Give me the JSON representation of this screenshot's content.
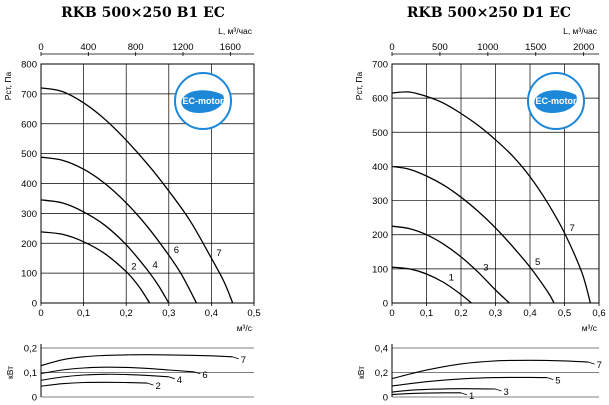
{
  "chart_data": [
    {
      "type": "line",
      "title": "RKB 500×250 B1 EC",
      "badge": "EC-motor",
      "badge_color": "#1e88d8",
      "x_bottom_label": "м³/с",
      "x_bottom_ticks": [
        "0",
        "0,1",
        "0,2",
        "0,3",
        "0,4",
        "0,5"
      ],
      "x_top_label": "L, м³/час",
      "x_top_ticks": [
        "0",
        "400",
        "800",
        "1200",
        "1600"
      ],
      "y_label": "Pст, Па",
      "y_ticks": [
        "0",
        "100",
        "200",
        "300",
        "400",
        "500",
        "600",
        "700",
        "800"
      ],
      "xlim": [
        0,
        0.5
      ],
      "ylim": [
        0,
        800
      ],
      "grid": true,
      "series": [
        {
          "name": "2",
          "x": [
            0,
            0.05,
            0.1,
            0.15,
            0.2,
            0.23,
            0.255
          ],
          "y": [
            238,
            230,
            205,
            165,
            105,
            55,
            0
          ]
        },
        {
          "name": "4",
          "x": [
            0,
            0.05,
            0.1,
            0.15,
            0.2,
            0.25,
            0.275,
            0.3
          ],
          "y": [
            345,
            335,
            305,
            260,
            195,
            110,
            60,
            0
          ]
        },
        {
          "name": "6",
          "x": [
            0,
            0.05,
            0.1,
            0.15,
            0.2,
            0.25,
            0.3,
            0.33,
            0.365
          ],
          "y": [
            488,
            478,
            448,
            400,
            335,
            255,
            160,
            95,
            0
          ]
        },
        {
          "name": "7",
          "x": [
            0,
            0.05,
            0.1,
            0.15,
            0.2,
            0.25,
            0.3,
            0.35,
            0.4,
            0.43,
            0.45
          ],
          "y": [
            720,
            708,
            670,
            615,
            545,
            465,
            375,
            275,
            150,
            70,
            0
          ]
        }
      ],
      "power": {
        "y_label": "кВт",
        "y_ticks": [
          "0",
          "0,1",
          "0,2"
        ],
        "ylim": [
          0,
          0.25
        ],
        "series": [
          {
            "name": "2",
            "x": [
              0,
              0.05,
              0.1,
              0.15,
              0.2,
              0.25
            ],
            "y": [
              0.055,
              0.068,
              0.074,
              0.075,
              0.074,
              0.071
            ]
          },
          {
            "name": "4",
            "x": [
              0,
              0.05,
              0.1,
              0.15,
              0.2,
              0.25,
              0.3
            ],
            "y": [
              0.085,
              0.102,
              0.112,
              0.116,
              0.115,
              0.11,
              0.103
            ]
          },
          {
            "name": "6",
            "x": [
              0,
              0.05,
              0.1,
              0.15,
              0.2,
              0.25,
              0.3,
              0.36
            ],
            "y": [
              0.12,
              0.138,
              0.148,
              0.152,
              0.151,
              0.146,
              0.138,
              0.128
            ]
          },
          {
            "name": "7",
            "x": [
              0,
              0.05,
              0.1,
              0.15,
              0.2,
              0.25,
              0.3,
              0.35,
              0.4,
              0.45
            ],
            "y": [
              0.16,
              0.19,
              0.205,
              0.212,
              0.215,
              0.216,
              0.215,
              0.213,
              0.21,
              0.205
            ]
          }
        ]
      }
    },
    {
      "type": "line",
      "title": "RKB 500×250 D1 EC",
      "badge": "EC-motor",
      "badge_color": "#1e88d8",
      "x_bottom_label": "м³/с",
      "x_bottom_ticks": [
        "0",
        "0,1",
        "0,2",
        "0,3",
        "0,4",
        "0,5",
        "0,6"
      ],
      "x_top_label": "L, м³/час",
      "x_top_ticks": [
        "0",
        "500",
        "1000",
        "1500",
        "2000"
      ],
      "y_label": "Pст, Па",
      "y_ticks": [
        "0",
        "100",
        "200",
        "300",
        "400",
        "500",
        "600",
        "700"
      ],
      "xlim": [
        0,
        0.6
      ],
      "ylim": [
        0,
        700
      ],
      "grid": true,
      "series": [
        {
          "name": "1",
          "x": [
            0,
            0.05,
            0.1,
            0.15,
            0.2,
            0.23
          ],
          "y": [
            105,
            100,
            85,
            60,
            25,
            0
          ]
        },
        {
          "name": "3",
          "x": [
            0,
            0.05,
            0.1,
            0.15,
            0.2,
            0.25,
            0.3,
            0.34
          ],
          "y": [
            225,
            218,
            200,
            172,
            135,
            90,
            38,
            0
          ]
        },
        {
          "name": "5",
          "x": [
            0,
            0.05,
            0.1,
            0.15,
            0.2,
            0.25,
            0.3,
            0.35,
            0.4,
            0.45,
            0.47
          ],
          "y": [
            400,
            392,
            372,
            345,
            310,
            268,
            220,
            165,
            105,
            35,
            0
          ]
        },
        {
          "name": "7",
          "x": [
            0,
            0.05,
            0.1,
            0.15,
            0.2,
            0.25,
            0.3,
            0.35,
            0.4,
            0.45,
            0.5,
            0.55,
            0.575
          ],
          "y": [
            615,
            618,
            605,
            585,
            555,
            520,
            478,
            430,
            370,
            295,
            205,
            90,
            0
          ]
        }
      ],
      "power": {
        "y_label": "кВт",
        "y_ticks": [
          "0",
          "0,2",
          "0,4"
        ],
        "ylim": [
          0,
          0.4
        ],
        "series": [
          {
            "name": "1",
            "x": [
              0,
              0.05,
              0.1,
              0.15,
              0.2
            ],
            "y": [
              0.02,
              0.028,
              0.032,
              0.034,
              0.034
            ]
          },
          {
            "name": "3",
            "x": [
              0,
              0.05,
              0.1,
              0.15,
              0.2,
              0.25,
              0.3
            ],
            "y": [
              0.04,
              0.055,
              0.062,
              0.066,
              0.068,
              0.067,
              0.065
            ]
          },
          {
            "name": "5",
            "x": [
              0,
              0.1,
              0.2,
              0.3,
              0.4,
              0.45
            ],
            "y": [
              0.09,
              0.125,
              0.148,
              0.158,
              0.16,
              0.158
            ]
          },
          {
            "name": "7",
            "x": [
              0,
              0.1,
              0.2,
              0.3,
              0.4,
              0.5,
              0.57
            ],
            "y": [
              0.15,
              0.22,
              0.27,
              0.295,
              0.3,
              0.295,
              0.285
            ]
          }
        ]
      }
    }
  ]
}
